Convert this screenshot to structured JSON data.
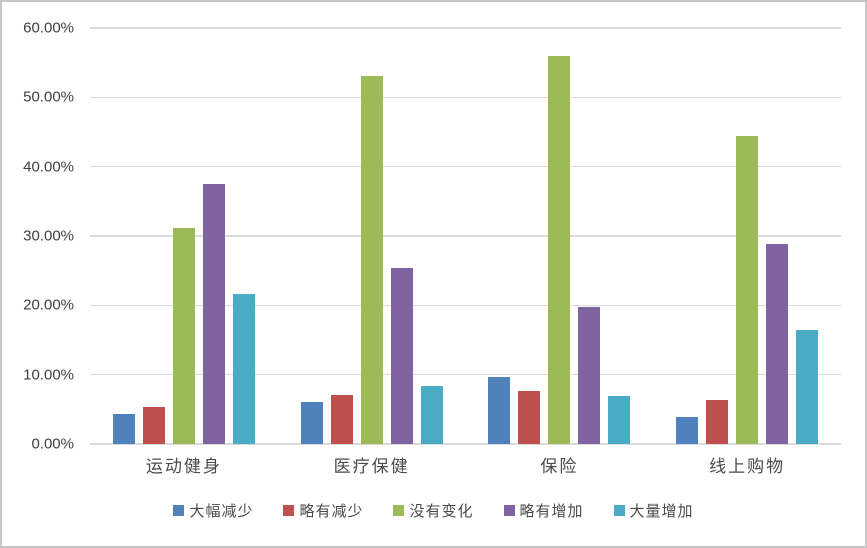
{
  "chart_data": {
    "type": "bar",
    "title": "",
    "xlabel": "",
    "ylabel": "",
    "categories": [
      "运动健身",
      "医疗保健",
      "保险",
      "线上购物"
    ],
    "series": [
      {
        "id": "decrease-large",
        "name": "大幅减少",
        "color": "#4F81BD",
        "values": [
          4.4,
          6.0,
          9.7,
          3.9
        ]
      },
      {
        "id": "decrease-slight",
        "name": "略有减少",
        "color": "#C0504D",
        "values": [
          5.3,
          7.1,
          7.7,
          6.4
        ]
      },
      {
        "id": "no-change",
        "name": "没有变化",
        "color": "#9BBB59",
        "values": [
          31.1,
          53.1,
          56.0,
          44.4
        ]
      },
      {
        "id": "increase-slight",
        "name": "略有增加",
        "color": "#8064A2",
        "values": [
          37.5,
          25.4,
          19.8,
          28.9
        ]
      },
      {
        "id": "increase-large",
        "name": "大量增加",
        "color": "#4BACC6",
        "values": [
          21.7,
          8.4,
          6.9,
          16.5
        ]
      }
    ],
    "ylim": [
      0,
      60
    ],
    "yticks": [
      {
        "value": 0,
        "label": "0.00%"
      },
      {
        "value": 10,
        "label": "10.00%"
      },
      {
        "value": 20,
        "label": "20.00%"
      },
      {
        "value": 30,
        "label": "30.00%"
      },
      {
        "value": 40,
        "label": "40.00%"
      },
      {
        "value": 50,
        "label": "50.00%"
      },
      {
        "value": 60,
        "label": "60.00%"
      }
    ],
    "grid": true,
    "legend_position": "bottom"
  },
  "colors": {
    "gridline": "#DBDBDB",
    "axis_text": "#404040",
    "border": "#C6C6C6",
    "background": "#FFFFFF"
  }
}
